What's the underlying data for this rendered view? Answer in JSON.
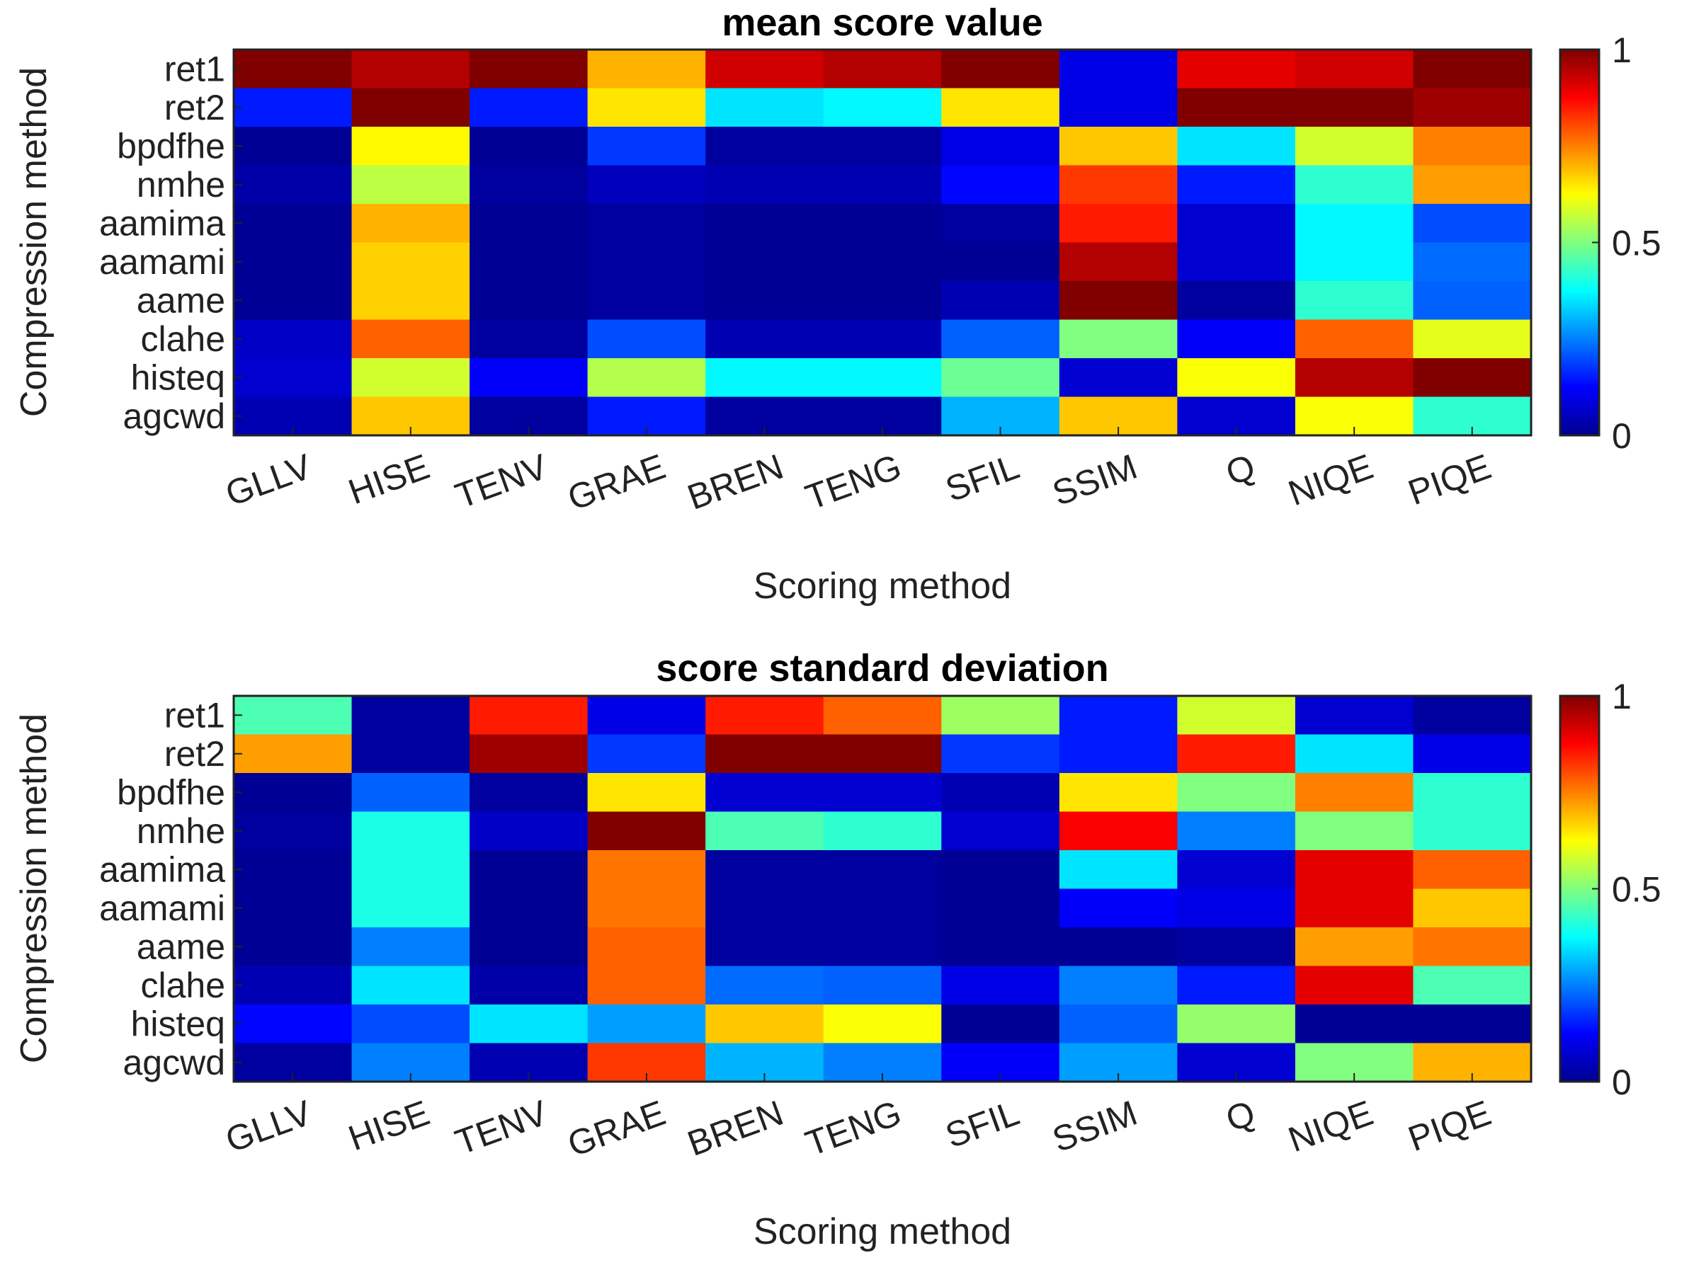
{
  "chart_data": [
    {
      "type": "heatmap",
      "title": "mean score value",
      "xlabel": "Scoring method",
      "ylabel": "Compression method",
      "x_categories": [
        "GLLV",
        "HISE",
        "TENV",
        "GRAE",
        "BREN",
        "TENG",
        "SFIL",
        "SSIM",
        "Q",
        "NIQE",
        "PIQE"
      ],
      "y_categories": [
        "ret1",
        "ret2",
        "bpdfhe",
        "nmhe",
        "aamima",
        "aamami",
        "aame",
        "clahe",
        "histeq",
        "agcwd"
      ],
      "colormap": "jet",
      "clim": [
        0,
        1
      ],
      "colorbar_ticks": [
        "0",
        "0.5",
        "1"
      ],
      "values": [
        [
          1.0,
          0.95,
          1.0,
          0.7,
          0.92,
          0.95,
          1.0,
          0.1,
          0.9,
          0.92,
          1.0
        ],
        [
          0.15,
          1.0,
          0.15,
          0.65,
          0.35,
          0.37,
          0.65,
          0.1,
          1.0,
          1.0,
          0.97
        ],
        [
          0.02,
          0.63,
          0.02,
          0.18,
          0.03,
          0.03,
          0.1,
          0.68,
          0.35,
          0.58,
          0.75
        ],
        [
          0.04,
          0.56,
          0.03,
          0.06,
          0.05,
          0.05,
          0.13,
          0.82,
          0.15,
          0.42,
          0.72
        ],
        [
          0.02,
          0.7,
          0.02,
          0.03,
          0.02,
          0.02,
          0.03,
          0.85,
          0.08,
          0.37,
          0.2
        ],
        [
          0.02,
          0.67,
          0.02,
          0.03,
          0.02,
          0.02,
          0.02,
          0.95,
          0.08,
          0.37,
          0.23
        ],
        [
          0.02,
          0.67,
          0.02,
          0.03,
          0.02,
          0.02,
          0.05,
          1.0,
          0.03,
          0.42,
          0.22
        ],
        [
          0.07,
          0.78,
          0.03,
          0.2,
          0.05,
          0.05,
          0.22,
          0.5,
          0.12,
          0.78,
          0.6
        ],
        [
          0.08,
          0.58,
          0.12,
          0.55,
          0.37,
          0.37,
          0.48,
          0.08,
          0.62,
          0.95,
          1.0
        ],
        [
          0.05,
          0.68,
          0.03,
          0.15,
          0.03,
          0.03,
          0.3,
          0.68,
          0.08,
          0.62,
          0.42
        ]
      ]
    },
    {
      "type": "heatmap",
      "title": "score standard deviation",
      "xlabel": "Scoring method",
      "ylabel": "Compression method",
      "x_categories": [
        "GLLV",
        "HISE",
        "TENV",
        "GRAE",
        "BREN",
        "TENG",
        "SFIL",
        "SSIM",
        "Q",
        "NIQE",
        "PIQE"
      ],
      "y_categories": [
        "ret1",
        "ret2",
        "bpdfhe",
        "nmhe",
        "aamima",
        "aamami",
        "aame",
        "clahe",
        "histeq",
        "agcwd"
      ],
      "colormap": "jet",
      "clim": [
        0,
        1
      ],
      "colorbar_ticks": [
        "0",
        "0.5",
        "1"
      ],
      "values": [
        [
          0.45,
          0.03,
          0.85,
          0.1,
          0.85,
          0.78,
          0.53,
          0.15,
          0.58,
          0.08,
          0.03
        ],
        [
          0.72,
          0.03,
          0.97,
          0.18,
          1.0,
          1.0,
          0.18,
          0.15,
          0.85,
          0.35,
          0.1
        ],
        [
          0.02,
          0.22,
          0.03,
          0.65,
          0.08,
          0.08,
          0.05,
          0.65,
          0.5,
          0.75,
          0.42
        ],
        [
          0.03,
          0.4,
          0.07,
          1.0,
          0.45,
          0.42,
          0.08,
          0.88,
          0.25,
          0.5,
          0.42
        ],
        [
          0.02,
          0.4,
          0.02,
          0.76,
          0.03,
          0.03,
          0.02,
          0.35,
          0.08,
          0.9,
          0.78
        ],
        [
          0.02,
          0.4,
          0.02,
          0.76,
          0.03,
          0.03,
          0.02,
          0.12,
          0.1,
          0.9,
          0.68
        ],
        [
          0.02,
          0.25,
          0.02,
          0.78,
          0.03,
          0.03,
          0.02,
          0.02,
          0.03,
          0.72,
          0.76
        ],
        [
          0.05,
          0.35,
          0.04,
          0.78,
          0.23,
          0.22,
          0.1,
          0.25,
          0.15,
          0.9,
          0.45
        ],
        [
          0.13,
          0.2,
          0.35,
          0.28,
          0.68,
          0.62,
          0.02,
          0.22,
          0.52,
          0.02,
          0.02
        ],
        [
          0.03,
          0.25,
          0.05,
          0.82,
          0.3,
          0.25,
          0.12,
          0.28,
          0.08,
          0.5,
          0.7
        ]
      ]
    }
  ]
}
